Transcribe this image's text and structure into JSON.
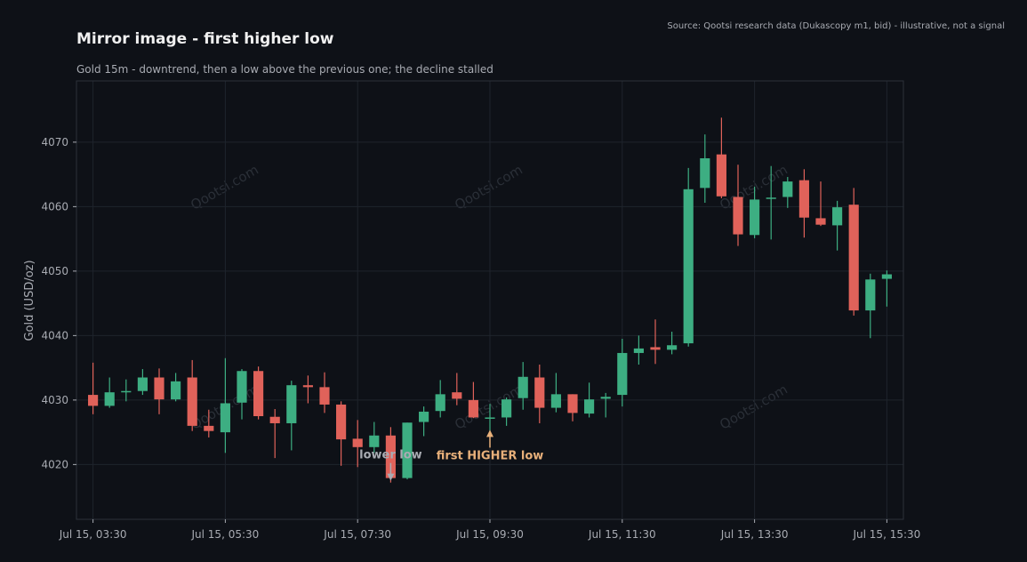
{
  "header": {
    "title": "Mirror image - first higher low",
    "subtitle": "Gold 15m - downtrend, then a low above the previous one; the decline stalled",
    "source": "Source: Qootsi research data (Dukascopy m1, bid) - illustrative, not a signal"
  },
  "watermark": "Qootsi.com",
  "colors": {
    "up": "#3dae82",
    "down": "#e0625a",
    "background": "#0e1117",
    "grid": "#1f242c",
    "axis": "#a8abb2",
    "annotation_accent": "#e8b07a",
    "annotation_muted": "#a8abb2"
  },
  "chart_data": {
    "type": "candlestick",
    "title": "Mirror image - first higher low",
    "ylabel": "Gold (USD/oz)",
    "ylim": [
      4011.5,
      4079.5
    ],
    "y_ticks": [
      4020,
      4030,
      4040,
      4050,
      4060,
      4070
    ],
    "x_ticks": [
      "Jul 15, 03:30",
      "Jul 15, 05:30",
      "Jul 15, 07:30",
      "Jul 15, 09:30",
      "Jul 15, 11:30",
      "Jul 15, 13:30",
      "Jul 15, 15:30"
    ],
    "x_tick_index": [
      0,
      8,
      16,
      24,
      32,
      40,
      48
    ],
    "x_range": [
      -1,
      49
    ],
    "grid": true,
    "candles": [
      {
        "t": "03:30",
        "o": 4030.8,
        "h": 4035.8,
        "l": 4027.8,
        "c": 4029.1
      },
      {
        "t": "03:45",
        "o": 4029.1,
        "h": 4033.5,
        "l": 4028.8,
        "c": 4031.2
      },
      {
        "t": "04:00",
        "o": 4031.2,
        "h": 4033.2,
        "l": 4029.8,
        "c": 4031.4
      },
      {
        "t": "04:15",
        "o": 4031.4,
        "h": 4034.8,
        "l": 4030.8,
        "c": 4033.5
      },
      {
        "t": "04:30",
        "o": 4033.5,
        "h": 4034.9,
        "l": 4027.8,
        "c": 4030.1
      },
      {
        "t": "04:45",
        "o": 4030.1,
        "h": 4034.2,
        "l": 4029.8,
        "c": 4032.9
      },
      {
        "t": "05:00",
        "o": 4033.5,
        "h": 4036.2,
        "l": 4025.2,
        "c": 4026.0
      },
      {
        "t": "05:15",
        "o": 4026.0,
        "h": 4028.5,
        "l": 4024.2,
        "c": 4025.2
      },
      {
        "t": "05:30",
        "o": 4025.0,
        "h": 4036.5,
        "l": 4021.8,
        "c": 4029.5
      },
      {
        "t": "05:45",
        "o": 4029.6,
        "h": 4034.8,
        "l": 4027.0,
        "c": 4034.5
      },
      {
        "t": "06:00",
        "o": 4034.5,
        "h": 4035.2,
        "l": 4027.0,
        "c": 4027.5
      },
      {
        "t": "06:15",
        "o": 4027.4,
        "h": 4028.6,
        "l": 4021.0,
        "c": 4026.4
      },
      {
        "t": "06:30",
        "o": 4026.4,
        "h": 4033.0,
        "l": 4022.2,
        "c": 4032.3
      },
      {
        "t": "06:45",
        "o": 4032.3,
        "h": 4033.8,
        "l": 4029.5,
        "c": 4032.0
      },
      {
        "t": "07:00",
        "o": 4032.0,
        "h": 4034.3,
        "l": 4028.0,
        "c": 4029.3
      },
      {
        "t": "07:15",
        "o": 4029.3,
        "h": 4029.8,
        "l": 4019.8,
        "c": 4023.9
      },
      {
        "t": "07:30",
        "o": 4024.0,
        "h": 4026.9,
        "l": 4019.6,
        "c": 4022.7
      },
      {
        "t": "07:45",
        "o": 4022.7,
        "h": 4026.6,
        "l": 4021.8,
        "c": 4024.5
      },
      {
        "t": "08:00",
        "o": 4024.5,
        "h": 4025.8,
        "l": 4017.2,
        "c": 4017.9
      },
      {
        "t": "08:15",
        "o": 4017.9,
        "h": 4026.5,
        "l": 4017.7,
        "c": 4026.5
      },
      {
        "t": "08:30",
        "o": 4026.6,
        "h": 4029.0,
        "l": 4024.4,
        "c": 4028.2
      },
      {
        "t": "08:45",
        "o": 4028.3,
        "h": 4033.1,
        "l": 4027.3,
        "c": 4030.9
      },
      {
        "t": "09:00",
        "o": 4031.2,
        "h": 4034.2,
        "l": 4029.2,
        "c": 4030.2
      },
      {
        "t": "09:15",
        "o": 4030.0,
        "h": 4032.8,
        "l": 4027.2,
        "c": 4027.3
      },
      {
        "t": "09:30",
        "o": 4027.2,
        "h": 4029.4,
        "l": 4025.1,
        "c": 4027.3
      },
      {
        "t": "09:45",
        "o": 4027.3,
        "h": 4030.4,
        "l": 4026.0,
        "c": 4030.1
      },
      {
        "t": "10:00",
        "o": 4030.3,
        "h": 4035.9,
        "l": 4028.5,
        "c": 4033.6
      },
      {
        "t": "10:15",
        "o": 4033.5,
        "h": 4035.5,
        "l": 4026.4,
        "c": 4028.8
      },
      {
        "t": "10:30",
        "o": 4028.8,
        "h": 4034.2,
        "l": 4028.1,
        "c": 4030.9
      },
      {
        "t": "10:45",
        "o": 4030.9,
        "h": 4030.9,
        "l": 4026.7,
        "c": 4028.0
      },
      {
        "t": "11:00",
        "o": 4027.9,
        "h": 4032.7,
        "l": 4027.3,
        "c": 4030.1
      },
      {
        "t": "11:15",
        "o": 4030.2,
        "h": 4031.1,
        "l": 4027.3,
        "c": 4030.5
      },
      {
        "t": "11:30",
        "o": 4030.8,
        "h": 4039.5,
        "l": 4029.0,
        "c": 4037.3
      },
      {
        "t": "11:45",
        "o": 4037.3,
        "h": 4040.0,
        "l": 4035.5,
        "c": 4038.0
      },
      {
        "t": "12:00",
        "o": 4038.2,
        "h": 4042.5,
        "l": 4035.6,
        "c": 4037.8
      },
      {
        "t": "12:15",
        "o": 4037.8,
        "h": 4040.6,
        "l": 4037.1,
        "c": 4038.5
      },
      {
        "t": "12:30",
        "o": 4038.8,
        "h": 4066.0,
        "l": 4038.3,
        "c": 4062.7
      },
      {
        "t": "12:45",
        "o": 4062.9,
        "h": 4071.2,
        "l": 4060.6,
        "c": 4067.5
      },
      {
        "t": "13:00",
        "o": 4068.1,
        "h": 4073.8,
        "l": 4061.3,
        "c": 4061.6
      },
      {
        "t": "13:15",
        "o": 4061.5,
        "h": 4066.5,
        "l": 4053.9,
        "c": 4055.7
      },
      {
        "t": "13:30",
        "o": 4055.6,
        "h": 4063.1,
        "l": 4055.1,
        "c": 4061.1
      },
      {
        "t": "13:45",
        "o": 4061.2,
        "h": 4066.3,
        "l": 4054.9,
        "c": 4061.4
      },
      {
        "t": "14:00",
        "o": 4061.5,
        "h": 4064.6,
        "l": 4059.8,
        "c": 4063.9
      },
      {
        "t": "14:15",
        "o": 4064.1,
        "h": 4065.8,
        "l": 4055.2,
        "c": 4058.3
      },
      {
        "t": "14:30",
        "o": 4058.2,
        "h": 4063.9,
        "l": 4057.0,
        "c": 4057.2
      },
      {
        "t": "14:45",
        "o": 4057.1,
        "h": 4060.9,
        "l": 4053.2,
        "c": 4059.9
      },
      {
        "t": "15:00",
        "o": 4060.3,
        "h": 4062.9,
        "l": 4043.1,
        "c": 4043.9
      },
      {
        "t": "15:15",
        "o": 4043.9,
        "h": 4049.6,
        "l": 4039.6,
        "c": 4048.7
      },
      {
        "t": "15:30",
        "o": 4048.8,
        "h": 4050.1,
        "l": 4044.5,
        "c": 4049.5
      }
    ],
    "annotations": [
      {
        "text": "lower low",
        "index": 18,
        "price": 4017.2,
        "style": "muted"
      },
      {
        "text": "first HIGHER low",
        "index": 24,
        "price": 4025.1,
        "style": "accent"
      }
    ]
  }
}
